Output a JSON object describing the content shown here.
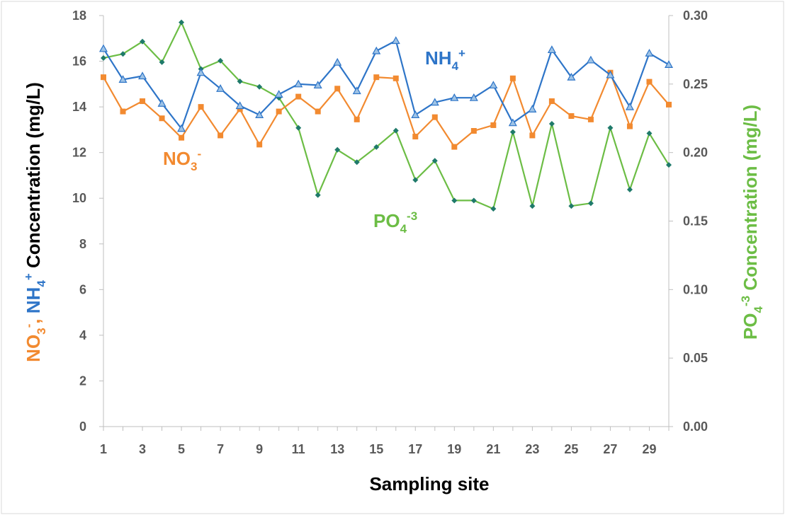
{
  "chart_data": {
    "type": "line",
    "xlabel": "Sampling site",
    "ylabel_left": {
      "part1": "NO",
      "sub1": "3",
      "sup1": "-",
      "sep": ", ",
      "part2": "NH",
      "sub2": "4",
      "sup2": "+",
      "rest": " Concentration (mg/L)"
    },
    "ylabel_right": {
      "part1": "PO",
      "sub1": "4",
      "sup1": "-3",
      "rest": " Concentration (mg/L)"
    },
    "ylim_left": [
      0,
      18
    ],
    "yticks_left": [
      "0",
      "2",
      "4",
      "6",
      "8",
      "10",
      "12",
      "14",
      "16",
      "18"
    ],
    "ylim_right": [
      0,
      0.3
    ],
    "yticks_right": [
      "0.00",
      "0.05",
      "0.10",
      "0.15",
      "0.20",
      "0.25",
      "0.30"
    ],
    "xlim": [
      1,
      30
    ],
    "xticks": [
      "1",
      "3",
      "5",
      "7",
      "9",
      "11",
      "13",
      "15",
      "17",
      "19",
      "21",
      "23",
      "25",
      "27",
      "29"
    ],
    "grid": false,
    "x": [
      1,
      2,
      3,
      4,
      5,
      6,
      7,
      8,
      9,
      10,
      11,
      12,
      13,
      14,
      15,
      16,
      17,
      18,
      19,
      20,
      21,
      22,
      23,
      24,
      25,
      26,
      27,
      28,
      29,
      30
    ],
    "series": [
      {
        "key": "nh4",
        "label": {
          "text": "NH",
          "sub": "4",
          "sup": "+"
        },
        "axis": "left",
        "color": "#2E75C8",
        "marker": "triangle",
        "values": [
          16.55,
          15.2,
          15.35,
          14.15,
          13.05,
          15.5,
          14.8,
          14.05,
          13.65,
          14.55,
          15.0,
          14.95,
          15.95,
          14.7,
          16.45,
          16.9,
          13.65,
          14.2,
          14.4,
          14.4,
          14.95,
          13.3,
          13.9,
          16.5,
          15.3,
          16.05,
          15.4,
          14.0,
          16.35,
          15.85
        ]
      },
      {
        "key": "no3",
        "label": {
          "text": "NO",
          "sub": "3",
          "sup": "-"
        },
        "axis": "left",
        "color": "#F28A30",
        "marker": "square",
        "values": [
          15.3,
          13.8,
          14.25,
          13.5,
          12.65,
          14.0,
          12.75,
          13.9,
          12.35,
          13.8,
          14.45,
          13.8,
          14.8,
          13.45,
          15.3,
          15.25,
          12.7,
          13.55,
          12.25,
          12.95,
          13.2,
          15.25,
          12.75,
          14.25,
          13.6,
          13.45,
          15.5,
          13.15,
          15.1,
          14.1
        ]
      },
      {
        "key": "po4",
        "label": {
          "text": "PO",
          "sub": "4",
          "sup": "-3"
        },
        "axis": "right",
        "color": "#6CBD45",
        "marker": "diamond",
        "marker_color": "#1F7A6A",
        "values": [
          0.269,
          0.272,
          0.281,
          0.266,
          0.295,
          0.261,
          0.267,
          0.252,
          0.248,
          0.24,
          0.218,
          0.169,
          0.202,
          0.193,
          0.204,
          0.216,
          0.18,
          0.194,
          0.165,
          0.165,
          0.159,
          0.215,
          0.161,
          0.221,
          0.161,
          0.163,
          0.218,
          0.173,
          0.214,
          0.191
        ]
      }
    ]
  }
}
